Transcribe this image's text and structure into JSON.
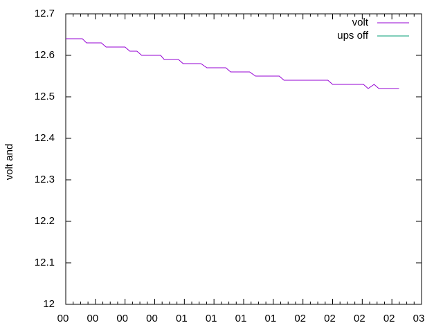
{
  "chart_data": {
    "type": "line",
    "y_label": "volt and",
    "x": [
      0,
      0.14,
      0.175,
      0.3,
      0.34,
      0.5,
      0.54,
      0.6,
      0.64,
      0.8,
      0.83,
      0.95,
      0.99,
      1.14,
      1.19,
      1.35,
      1.39,
      1.55,
      1.6,
      1.8,
      1.84,
      2.21,
      2.25,
      2.51,
      2.55,
      2.6,
      2.64,
      2.81
    ],
    "series": [
      {
        "name": "volt",
        "color": "#9400d3",
        "values": [
          12.64,
          12.64,
          12.63,
          12.63,
          12.62,
          12.62,
          12.61,
          12.61,
          12.6,
          12.6,
          12.59,
          12.59,
          12.58,
          12.58,
          12.57,
          12.57,
          12.56,
          12.56,
          12.55,
          12.55,
          12.54,
          12.54,
          12.53,
          12.53,
          12.52,
          12.53,
          12.52,
          12.52
        ]
      },
      {
        "name": "ups off",
        "color": "#009e73",
        "values": [
          null,
          null,
          null,
          null,
          null,
          null,
          null,
          null,
          null,
          null,
          null,
          null,
          null,
          null,
          null,
          null,
          null,
          null,
          null,
          null,
          null,
          null,
          null,
          null,
          null,
          null,
          null,
          null
        ]
      }
    ],
    "xlim": [
      0,
      3
    ],
    "xticks": [
      {
        "value": 0,
        "label": "00"
      },
      {
        "value": 0.25,
        "label": "00"
      },
      {
        "value": 0.5,
        "label": "00"
      },
      {
        "value": 0.75,
        "label": "00"
      },
      {
        "value": 1,
        "label": "01"
      },
      {
        "value": 1.25,
        "label": "01"
      },
      {
        "value": 1.5,
        "label": "01"
      },
      {
        "value": 1.75,
        "label": "01"
      },
      {
        "value": 2,
        "label": "02"
      },
      {
        "value": 2.25,
        "label": "02"
      },
      {
        "value": 2.5,
        "label": "02"
      },
      {
        "value": 2.75,
        "label": "02"
      },
      {
        "value": 3,
        "label": "03"
      }
    ],
    "ylim": [
      12,
      12.7
    ],
    "yticks": [
      12,
      12.1,
      12.2,
      12.3,
      12.4,
      12.5,
      12.6,
      12.7
    ],
    "grid": false,
    "legend": "top-right"
  }
}
